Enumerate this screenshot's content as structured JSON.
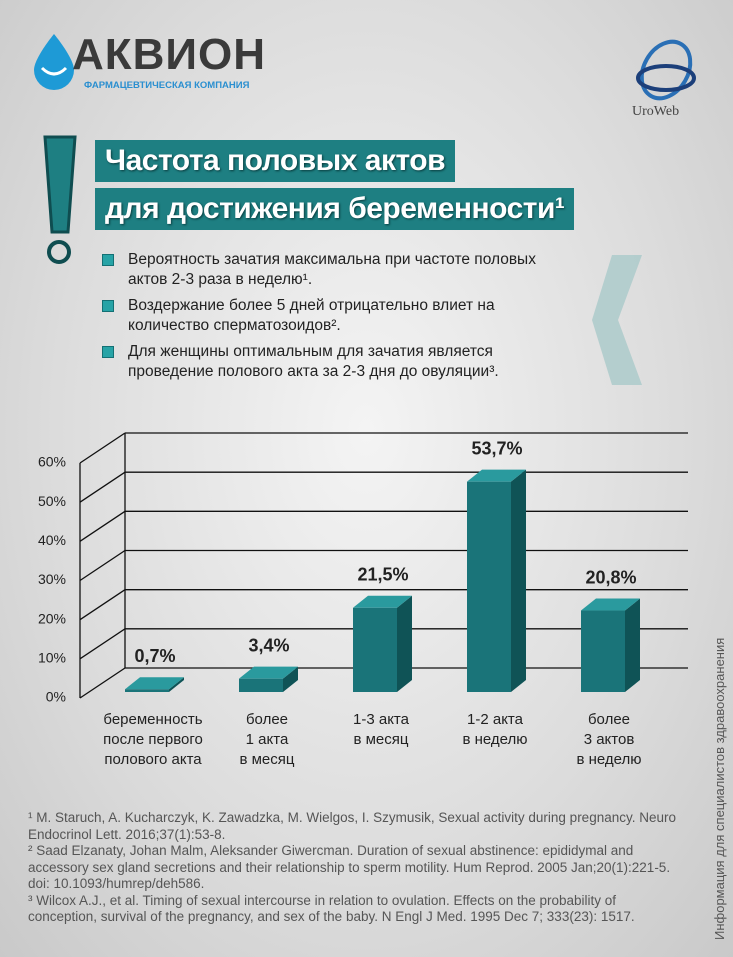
{
  "header": {
    "brand": "АКВИОН",
    "brand_subtitle": "ФАРМАЦЕВТИЧЕСКАЯ КОМПАНИЯ",
    "partner": "UroWeb"
  },
  "headline": [
    "Частота половых актов",
    "для достижения беременности¹"
  ],
  "bullets": [
    "Вероятность зачатия максимальна при частоте половых актов 2-3 раза в неделю¹.",
    "Воздержание более 5 дней отрицательно влиет на количество сперматозоидов².",
    "Для женщины оптимальным для зачатия является проведение полового акта за 2-3 дня до овуляции³."
  ],
  "chart_data": {
    "type": "bar",
    "categories": [
      "беременность\nпосле первого\nполового акта",
      "более\n1 акта\nв месяц",
      "1-3 акта\nв месяц",
      "1-2 акта\nв неделю",
      "более\n3 актов\nв неделю"
    ],
    "values": [
      0.7,
      3.4,
      21.5,
      53.7,
      20.8
    ],
    "value_labels": [
      "0,7%",
      "3,4%",
      "21,5%",
      "53,7%",
      "20,8%"
    ],
    "color": "#1a7479",
    "ylim": [
      0,
      60
    ],
    "yticks": [
      {
        "value": 0,
        "label": "0%"
      },
      {
        "value": 10,
        "label": "10%"
      },
      {
        "value": 20,
        "label": "20%"
      },
      {
        "value": 30,
        "label": "30%"
      },
      {
        "value": 40,
        "label": "40%"
      },
      {
        "value": 50,
        "label": "50%"
      },
      {
        "value": 60,
        "label": "60%"
      }
    ],
    "grid": true
  },
  "references": [
    "¹ M. Staruch, A. Kucharczyk, K. Zawadzka, M. Wielgos, I. Szymusik, Sexual activity during pregnancy. Neuro Endocrinol Lett. 2016;37(1):53-8.",
    "² Saad Elzanaty, Johan Malm, Aleksander Giwercman. Duration of sexual abstinence: epididymal and accessory sex gland secretions and their relationship to sperm motility. Hum Reprod. 2005 Jan;20(1):221-5.  doi: 10.1093/humrep/deh586.",
    "³ Wilcox A.J., et al. Timing of sexual intercourse in relation to ovulation. Effects on the probability of conception, survival of the pregnancy, and sex of the baby. N Engl J Med. 1995 Dec 7; 333(23): 1517."
  ],
  "side_note": "Информация для специалистов здравоохранения"
}
